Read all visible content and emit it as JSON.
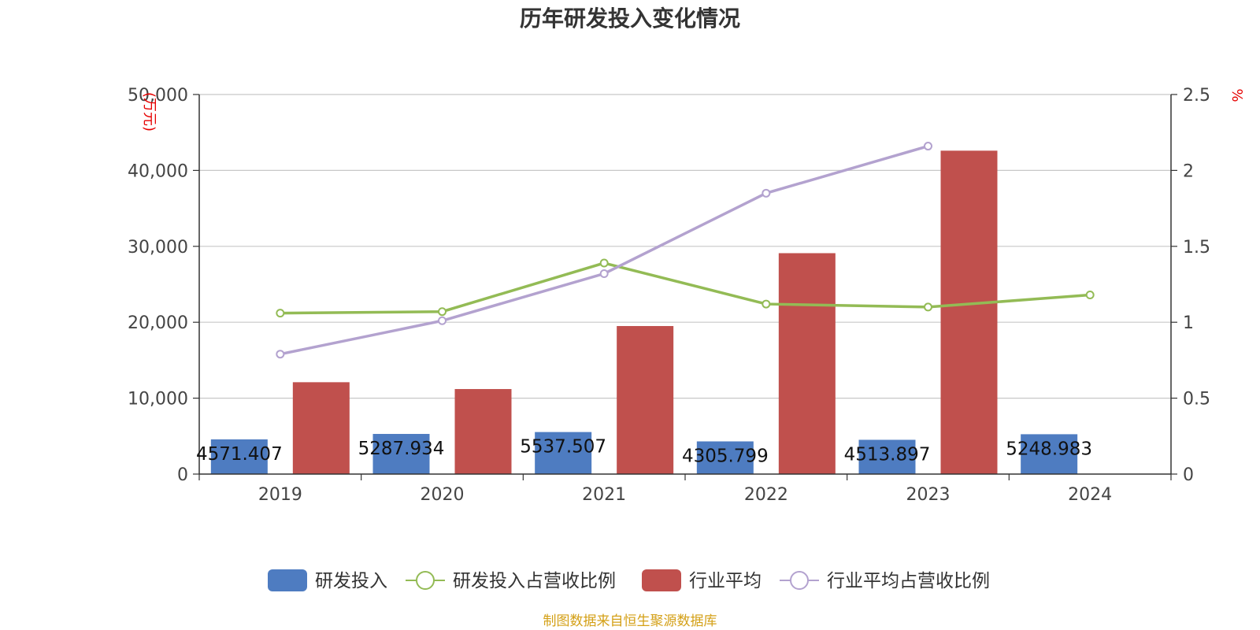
{
  "chart_data": {
    "type": "bar",
    "title": "历年研发投入变化情况",
    "categories": [
      "2019",
      "2020",
      "2021",
      "2022",
      "2023",
      "2024"
    ],
    "y_left": {
      "unit": "(万元)",
      "ylim": [
        0,
        50000
      ],
      "ticks": [
        "0",
        "10,000",
        "20,000",
        "30,000",
        "40,000",
        "50,000"
      ],
      "tick_values": [
        0,
        10000,
        20000,
        30000,
        40000,
        50000
      ]
    },
    "y_right": {
      "unit": "%",
      "ylim": [
        0,
        2.5
      ],
      "ticks": [
        "0",
        "0.5",
        "1",
        "1.5",
        "2",
        "2.5"
      ],
      "tick_values": [
        0,
        0.5,
        1,
        1.5,
        2,
        2.5
      ]
    },
    "series": [
      {
        "name": "研发投入",
        "type": "bar",
        "axis": "left",
        "color": "#4e7cc1",
        "values": [
          4571.407,
          5287.934,
          5537.507,
          4305.799,
          4513.897,
          5248.983
        ],
        "labels": [
          "4571.407",
          "5287.934",
          "5537.507",
          "4305.799",
          "4513.897",
          "5248.983"
        ]
      },
      {
        "name": "研发投入占营收比例",
        "type": "line",
        "axis": "right",
        "color": "#93bb55",
        "values": [
          1.06,
          1.07,
          1.39,
          1.12,
          1.1,
          1.18
        ]
      },
      {
        "name": "行业平均",
        "type": "bar",
        "axis": "left",
        "color": "#c0504d",
        "values": [
          12100,
          11200,
          19500,
          29100,
          42600,
          null
        ]
      },
      {
        "name": "行业平均占营收比例",
        "type": "line",
        "axis": "right",
        "color": "#b3a2cf",
        "values": [
          0.79,
          1.01,
          1.32,
          1.85,
          2.16,
          null
        ]
      }
    ],
    "grid": true,
    "legend": "bottom"
  },
  "source_text": "制图数据来自恒生聚源数据库"
}
